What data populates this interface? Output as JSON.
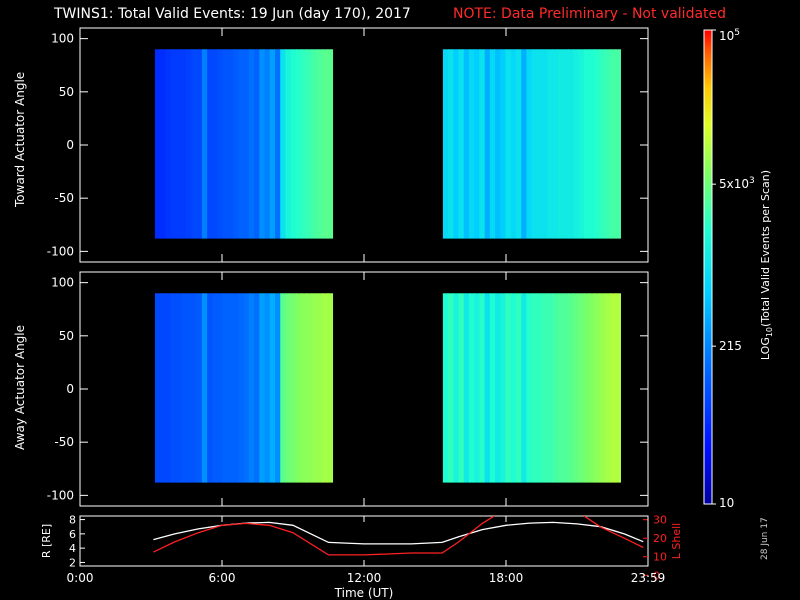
{
  "header": {
    "title": "TWINS1: Total Valid Events: 19 Jun (day 170), 2017",
    "note": "NOTE: Data Preliminary - Not validated"
  },
  "side_date": "28 Jun 17",
  "colors": {
    "background": "#000000",
    "axes": "#ffffff",
    "note": "#ff2a2a",
    "lshell": "#ff2020",
    "radius": "#ffffff"
  },
  "chart_data": [
    {
      "type": "heatmap",
      "ylabel": "Toward Actuator Angle",
      "ylim": [
        -110,
        110
      ],
      "yticks": [
        "100",
        "50",
        "0",
        "-50",
        "-100"
      ],
      "xlim_hours": [
        0,
        24
      ],
      "data_blocks": [
        {
          "t_start": "03:10",
          "t_end": "10:40",
          "angle_range": [
            -88,
            90
          ],
          "columns_log10": [
            1.7,
            1.7,
            1.75,
            1.8,
            1.8,
            1.8,
            1.85,
            1.9,
            1.9,
            2.3,
            1.9,
            1.9,
            1.95,
            2.0,
            2.0,
            2.05,
            2.1,
            2.1,
            2.2,
            2.1,
            2.4,
            2.3,
            2.5,
            2.2,
            3.0,
            3.2,
            3.3,
            3.35,
            3.4,
            3.45,
            3.5,
            3.55,
            3.6,
            3.6
          ]
        },
        {
          "t_start": "15:20",
          "t_end": "22:50",
          "angle_range": [
            -88,
            90
          ],
          "columns_log10": [
            2.9,
            3.0,
            2.8,
            3.0,
            2.7,
            2.9,
            2.8,
            3.0,
            2.6,
            2.9,
            2.7,
            2.8,
            3.0,
            2.9,
            3.0,
            2.6,
            2.9,
            3.0,
            3.0,
            3.0,
            3.05,
            3.05,
            3.1,
            3.1,
            3.1,
            3.15,
            3.2,
            3.3,
            3.3,
            3.35,
            3.4,
            3.45,
            3.5,
            3.5
          ]
        }
      ]
    },
    {
      "type": "heatmap",
      "ylabel": "Away Actuator Angle",
      "ylim": [
        -110,
        110
      ],
      "yticks": [
        "100",
        "50",
        "0",
        "-50",
        "-100"
      ],
      "xlim_hours": [
        0,
        24
      ],
      "data_blocks": [
        {
          "t_start": "03:10",
          "t_end": "10:40",
          "angle_range": [
            -88,
            90
          ],
          "columns_log10": [
            1.9,
            1.9,
            1.9,
            1.95,
            1.95,
            2.0,
            2.0,
            2.0,
            2.05,
            2.4,
            2.0,
            2.05,
            2.05,
            2.1,
            2.1,
            2.1,
            2.15,
            2.2,
            2.3,
            2.2,
            2.5,
            2.4,
            2.6,
            2.4,
            3.6,
            3.7,
            3.75,
            3.8,
            3.85,
            3.85,
            3.9,
            3.9,
            3.95,
            3.95
          ]
        },
        {
          "t_start": "15:20",
          "t_end": "22:50",
          "angle_range": [
            -88,
            90
          ],
          "columns_log10": [
            3.3,
            3.4,
            3.2,
            3.4,
            3.1,
            3.3,
            3.2,
            3.35,
            3.0,
            3.3,
            3.1,
            3.2,
            3.4,
            3.3,
            3.4,
            3.1,
            3.35,
            3.4,
            3.4,
            3.45,
            3.45,
            3.5,
            3.55,
            3.55,
            3.6,
            3.65,
            3.7,
            3.75,
            3.8,
            3.85,
            3.9,
            3.95,
            4.0,
            4.0
          ]
        }
      ]
    },
    {
      "type": "line",
      "ylabel": "R [RE]",
      "ylabel2": "L Shell",
      "xlabel": "Time (UT)",
      "x_tick_labels": [
        "0:00",
        "6:00",
        "12:00",
        "18:00",
        "23:59"
      ],
      "xlim_hours": [
        0,
        24
      ],
      "ylim": [
        1.5,
        8.5
      ],
      "y_tick_labels": [
        "8",
        "6",
        "4",
        "2"
      ],
      "y2lim": [
        5,
        32
      ],
      "y2_tick_labels": [
        "30",
        "20",
        "10",
        "0"
      ],
      "series": [
        {
          "key": "r",
          "axis": "left",
          "x": [
            3.1,
            4,
            5,
            6,
            7,
            8,
            9,
            10.5,
            12,
            14,
            15.3,
            16,
            17,
            18,
            19,
            20,
            21,
            22,
            23,
            23.8
          ],
          "y": [
            5.2,
            6.0,
            6.7,
            7.2,
            7.5,
            7.6,
            7.2,
            4.8,
            4.6,
            4.6,
            4.8,
            5.6,
            6.6,
            7.2,
            7.5,
            7.6,
            7.4,
            7.0,
            6.0,
            4.9
          ]
        },
        {
          "key": "lshell",
          "axis": "right",
          "x": [
            3.1,
            4,
            5,
            6,
            7,
            8,
            9,
            10.5,
            12,
            14,
            15.3,
            16,
            17,
            17.5
          ],
          "y": [
            12.5,
            18,
            23,
            27,
            28,
            27,
            23,
            11,
            11,
            12,
            12,
            18,
            28,
            32
          ],
          "x2": [
            21.3,
            22,
            23,
            23.8
          ],
          "y2": [
            32,
            26,
            20,
            15
          ]
        }
      ]
    }
  ],
  "colorbar": {
    "ylabel": "LOG10(Total Valid Events per Scan)",
    "log_range": [
      1,
      5
    ],
    "ticks": [
      {
        "label": "10",
        "log": 1.0
      },
      {
        "label": "215",
        "log": 2.332
      },
      {
        "label": "5x10^3",
        "log": 3.699
      },
      {
        "label": "10^5",
        "log": 5.0
      }
    ]
  }
}
